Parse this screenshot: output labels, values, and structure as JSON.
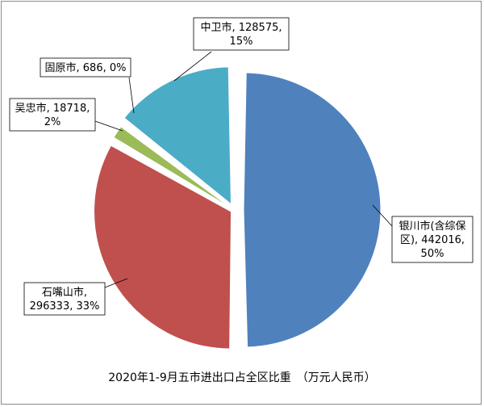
{
  "chart_data": {
    "type": "pie",
    "title": "2020年1-9月五市进出口占全区比重　（万元人民币）",
    "slices": [
      {
        "label": "银川市(含综保区)",
        "value": 442016,
        "percent": "50%",
        "color": "#4f81bd",
        "label_lines": [
          "银川市(含综保",
          "区), 442016,",
          "50%"
        ]
      },
      {
        "label": "石嘴山市",
        "value": 296333,
        "percent": "33%",
        "color": "#c0504d",
        "label_lines": [
          "石嘴山市,",
          "296333, 33%"
        ]
      },
      {
        "label": "吴忠市",
        "value": 18718,
        "percent": "2%",
        "color": "#9bbb59",
        "label_lines": [
          "吴忠市, 18718,",
          "2%"
        ]
      },
      {
        "label": "固原市",
        "value": 686,
        "percent": "0%",
        "color": "#8064a2",
        "label_lines": [
          "固原市, 686, 0%"
        ]
      },
      {
        "label": "中卫市",
        "value": 128575,
        "percent": "15%",
        "color": "#4bacc6",
        "label_lines": [
          "中卫市, 128575,",
          "15%"
        ]
      }
    ]
  }
}
